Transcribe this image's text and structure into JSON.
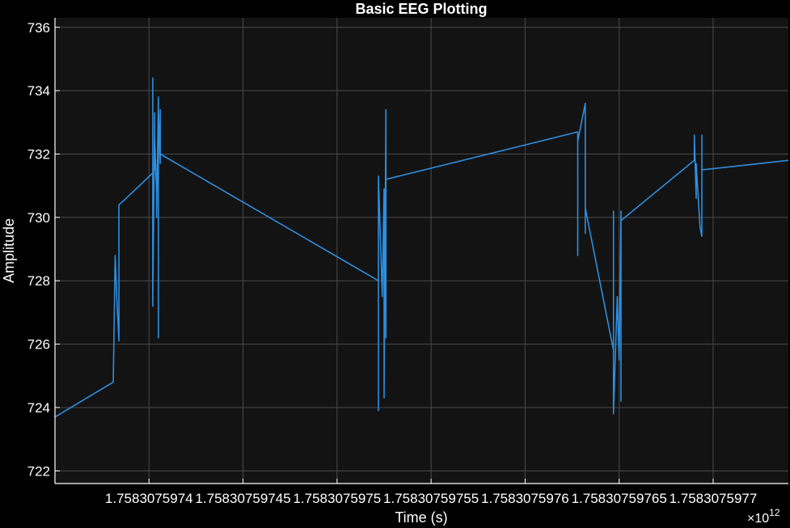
{
  "chart_data": {
    "type": "line",
    "title": "Basic EEG Plotting",
    "xlabel": "Time (s)",
    "ylabel": "Amplitude",
    "x_exponent_base": "×10",
    "x_exponent_power": "12",
    "xlim": [
      1.75830759735,
      1.75830759774
    ],
    "ylim": [
      721.6,
      736.3
    ],
    "grid": true,
    "colors": {
      "background": "#000000",
      "plot_area": "#131313",
      "grid": "#4a4a4a",
      "axis": "#ffffff",
      "line": "#2e8ede"
    },
    "x_ticks": [
      {
        "value": 1.7583075974,
        "label": "1.7583075974"
      },
      {
        "value": 1.75830759745,
        "label": "1.75830759745"
      },
      {
        "value": 1.7583075975,
        "label": "1.7583075975"
      },
      {
        "value": 1.75830759755,
        "label": "1.75830759755"
      },
      {
        "value": 1.7583075976,
        "label": "1.7583075976"
      },
      {
        "value": 1.75830759765,
        "label": "1.75830759765"
      },
      {
        "value": 1.7583075977,
        "label": "1.7583075977"
      }
    ],
    "y_ticks": [
      {
        "value": 722,
        "label": "722"
      },
      {
        "value": 724,
        "label": "724"
      },
      {
        "value": 726,
        "label": "726"
      },
      {
        "value": 728,
        "label": "728"
      },
      {
        "value": 730,
        "label": "730"
      },
      {
        "value": 732,
        "label": "732"
      },
      {
        "value": 734,
        "label": "734"
      },
      {
        "value": 736,
        "label": "736"
      }
    ],
    "series": [
      {
        "x": [
          1.75830759735,
          1.758307597381,
          1.758307597382,
          1.758307597383,
          1.758307597384,
          1.758307597384,
          1.758307597386,
          1.758307597402,
          1.758307597402,
          1.758307597402,
          1.758307597403,
          1.758307597403,
          1.758307597403,
          1.758307597404,
          1.758307597404,
          1.758307597405,
          1.758307597405,
          1.758307597405,
          1.758307597406,
          1.758307597406,
          1.758307597406,
          1.758307597406,
          1.758307597406,
          1.758307597522,
          1.758307597522,
          1.758307597522,
          1.758307597522,
          1.758307597524,
          1.758307597525,
          1.758307597525,
          1.758307597526,
          1.758307597526,
          1.758307597526,
          1.758307597526,
          1.758307597628,
          1.758307597628,
          1.758307597628,
          1.758307597628,
          1.758307597632,
          1.758307597632,
          1.758307597632,
          1.758307597632,
          1.758307597647,
          1.758307597647,
          1.758307597647,
          1.758307597649,
          1.75830759765,
          1.758307597651,
          1.758307597651,
          1.758307597651,
          1.75830759769,
          1.75830759769,
          1.758307597691,
          1.758307597691,
          1.758307597693,
          1.758307597694,
          1.758307597694,
          1.758307597694,
          1.75830759774
        ],
        "y": [
          723.7,
          724.8,
          728.8,
          727.3,
          726.1,
          730.4,
          730.5,
          731.4,
          734.4,
          727.2,
          733.3,
          731.5,
          732.5,
          730.8,
          730.0,
          733.8,
          726.2,
          733.4,
          731.7,
          733.4,
          731.8,
          732.2,
          732.0,
          728.0,
          731.3,
          723.9,
          731.3,
          727.5,
          730.9,
          724.3,
          733.4,
          726.2,
          731.1,
          731.2,
          732.7,
          728.8,
          731.5,
          732.4,
          733.6,
          729.5,
          731.5,
          730.3,
          725.8,
          730.2,
          723.8,
          727.5,
          725.5,
          730.2,
          724.2,
          729.9,
          731.8,
          732.6,
          730.6,
          731.7,
          729.7,
          729.4,
          732.6,
          731.5,
          731.8
        ]
      }
    ]
  }
}
